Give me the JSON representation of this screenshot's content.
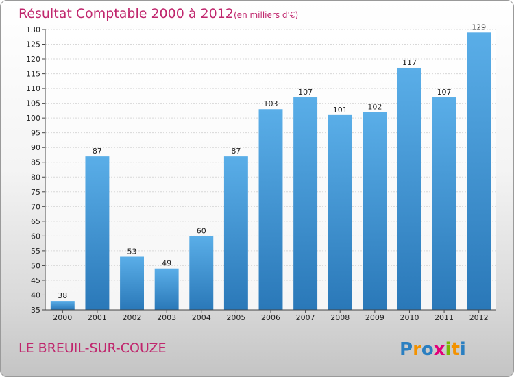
{
  "chart_data": {
    "type": "bar",
    "title": "Résultat Comptable 2000 à 2012",
    "unit": "(en milliers d'€)",
    "categories": [
      "2000",
      "2001",
      "2002",
      "2003",
      "2004",
      "2005",
      "2006",
      "2007",
      "2008",
      "2009",
      "2010",
      "2011",
      "2012"
    ],
    "values": [
      38,
      87,
      53,
      49,
      60,
      87,
      103,
      107,
      101,
      102,
      117,
      107,
      129
    ],
    "ylim": [
      35,
      130
    ],
    "ytick_step": 5,
    "grid": true,
    "xlabel": "",
    "ylabel": ""
  },
  "footer": {
    "commune": "LE BREUIL-SUR-COUZE",
    "brand": "Proxiti",
    "brand_letters": [
      {
        "ch": "P",
        "color": "#2a7fc1"
      },
      {
        "ch": "r",
        "color": "#f39200"
      },
      {
        "ch": "o",
        "color": "#2a7fc1"
      },
      {
        "ch": "x",
        "color": "#e2007a"
      },
      {
        "ch": "i",
        "color": "#7ab800"
      },
      {
        "ch": "t",
        "color": "#f39200"
      },
      {
        "ch": "i",
        "color": "#2a7fc1"
      }
    ]
  },
  "colors": {
    "bar_light": "#5aaee8",
    "bar_dark": "#2a78b8",
    "title": "#c0266d"
  }
}
